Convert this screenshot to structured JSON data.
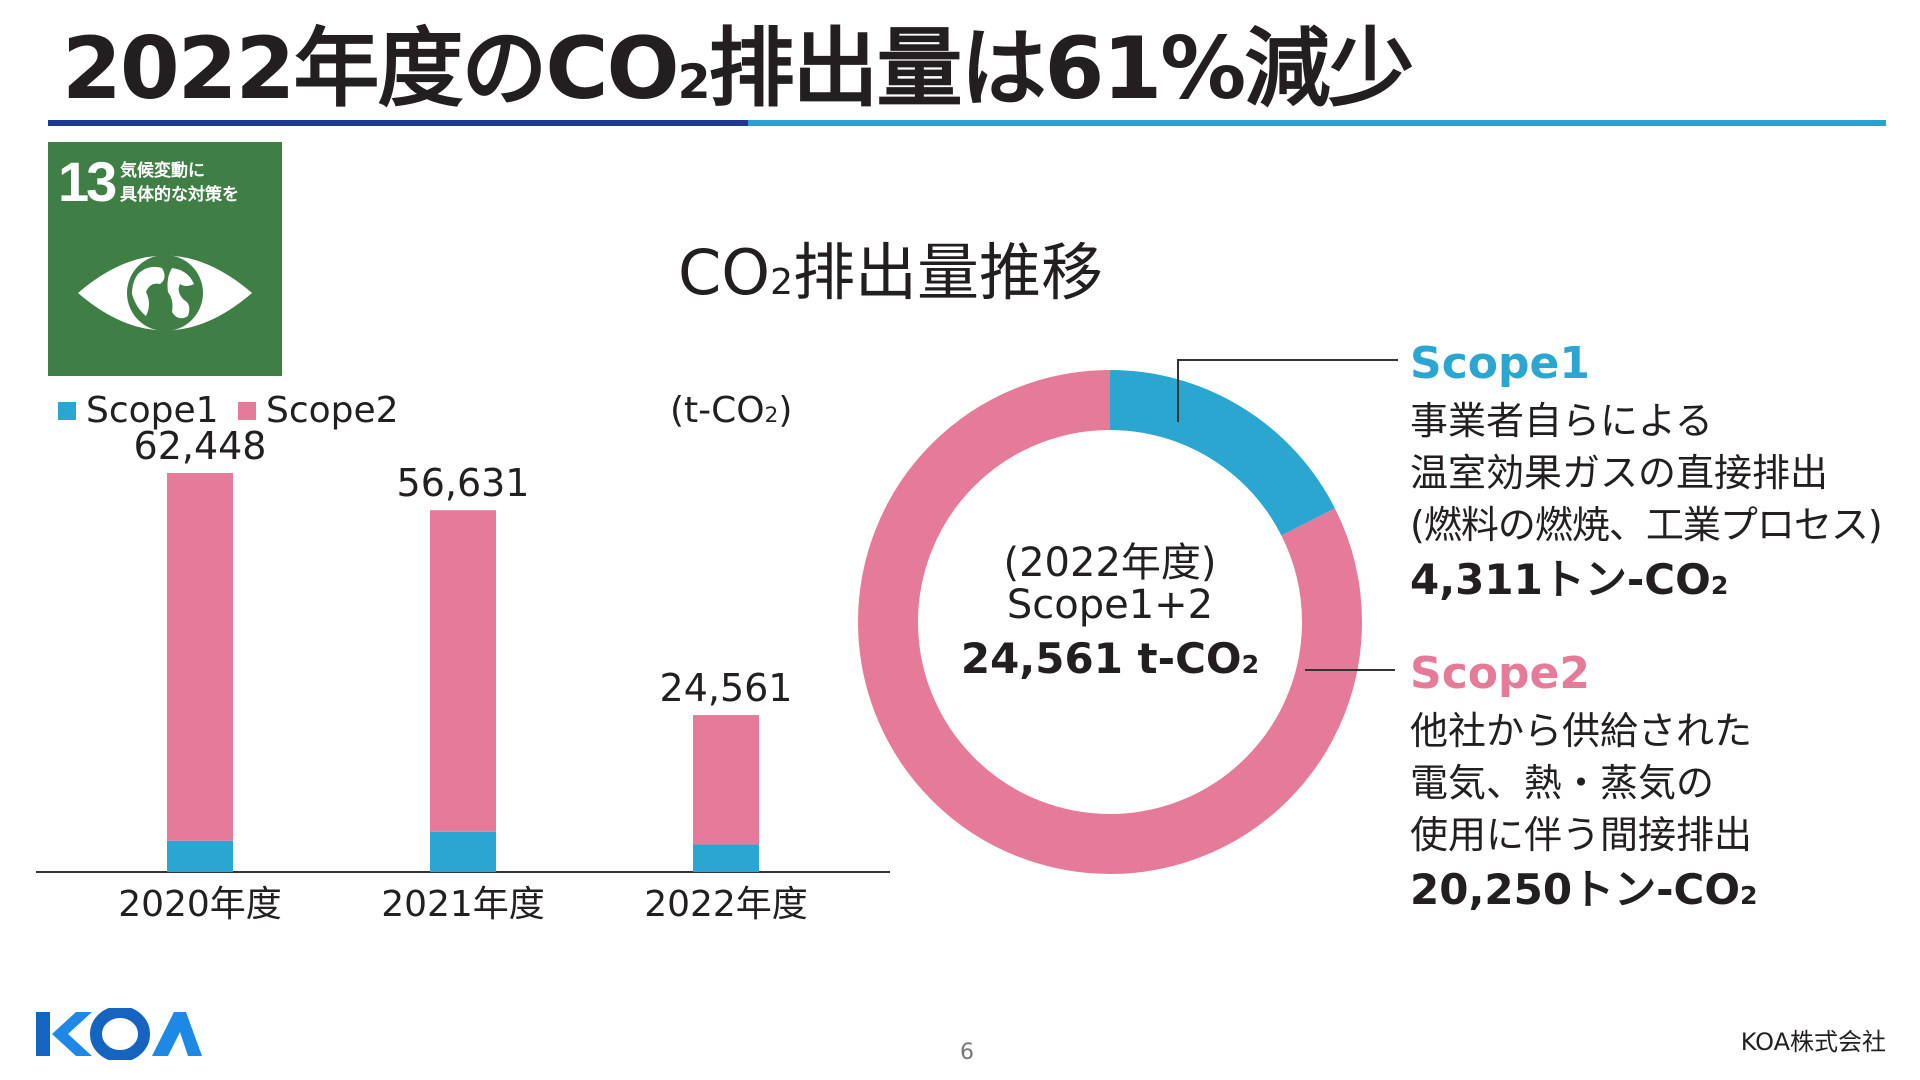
{
  "header": {
    "title_pre": "2022年度のCO",
    "title_sub": "2",
    "title_post": "排出量は61%減少"
  },
  "sdg_badge": {
    "number": "13",
    "caption_line1": "気候変動に",
    "caption_line2": "具体的な対策を",
    "icon": "eye-globe-icon",
    "color": "#3f7e44"
  },
  "chart_title": {
    "pre": "CO",
    "sub": "2",
    "post": "排出量推移"
  },
  "legend": {
    "scope1": "Scope1",
    "scope2": "Scope2"
  },
  "unit": {
    "pre": "(t-CO",
    "sub": "2",
    "post": ")"
  },
  "colors": {
    "scope1": "#2ba6d1",
    "scope2": "#e57a99",
    "axis": "#333333"
  },
  "chart_data": [
    {
      "type": "bar",
      "stacked": true,
      "categories": [
        "2020年度",
        "2021年度",
        "2022年度"
      ],
      "series": [
        {
          "name": "Scope1",
          "values": [
            4900,
            6300,
            4311
          ]
        },
        {
          "name": "Scope2",
          "values": [
            57548,
            50331,
            20250
          ]
        }
      ],
      "totals": [
        62448,
        56631,
        24561
      ],
      "total_labels": [
        "62,448",
        "56,631",
        "24,561"
      ],
      "ylim": [
        0,
        72000
      ],
      "grid": false,
      "legend_position": "top-left"
    },
    {
      "type": "pie",
      "donut": true,
      "labels": [
        "Scope1",
        "Scope2"
      ],
      "values": [
        4311,
        20250
      ],
      "center": {
        "year": "(2022年度)",
        "label": "Scope1+2",
        "total_pre": "24,561 t-CO",
        "total_sub": "2"
      }
    }
  ],
  "scope1_detail": {
    "title": "Scope1",
    "line1": "事業者自らによる",
    "line2": "温室効果ガスの直接排出",
    "line3": "(燃料の燃焼、工業プロセス)",
    "value_pre": "4,311トン-CO",
    "value_sub": "2"
  },
  "scope2_detail": {
    "title": "Scope2",
    "line1": "他社から供給された",
    "line2": "電気、熱・蒸気の",
    "line3": "使用に伴う間接排出",
    "value_pre": "20,250トン-CO",
    "value_sub": "2"
  },
  "footer": {
    "logo": "KOA",
    "page_number": "6",
    "company": "KOA株式会社"
  }
}
